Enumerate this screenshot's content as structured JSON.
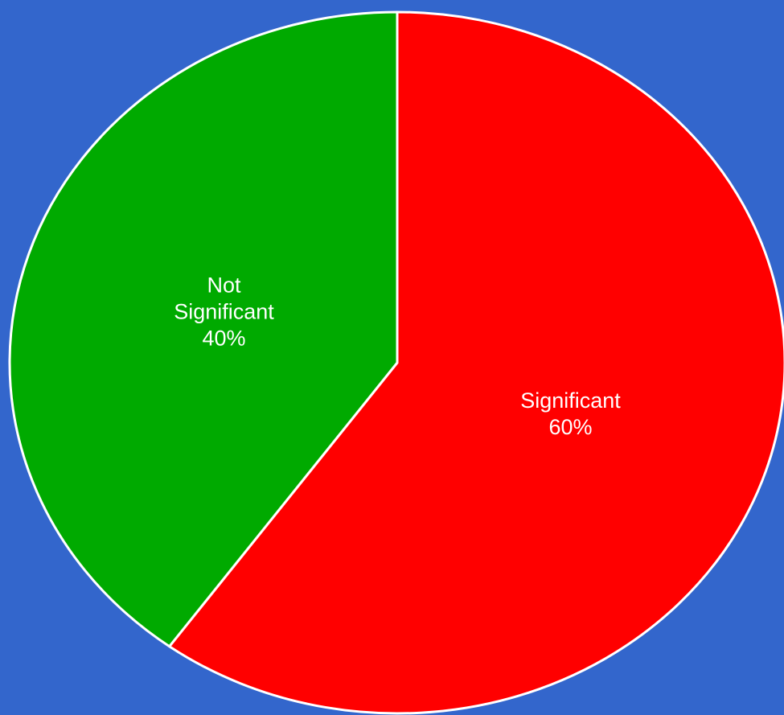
{
  "chart_data": {
    "type": "pie",
    "slices": [
      {
        "category_lines": [
          "Significant"
        ],
        "value": 60,
        "percent_label": "60%",
        "color": "#ff0000"
      },
      {
        "category_lines": [
          "Not",
          "Significant"
        ],
        "value": 40,
        "percent_label": "40%",
        "color": "#00aa00"
      }
    ]
  },
  "colors": {
    "background": "#3366cc",
    "border": "#ffffff"
  }
}
